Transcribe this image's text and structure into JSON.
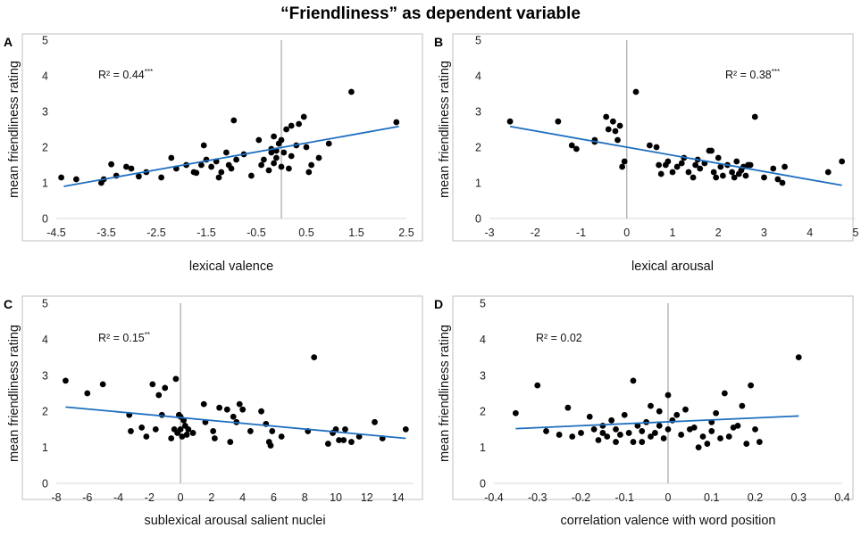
{
  "title": "“Friendliness” as dependent variable",
  "chart_data": [
    {
      "panel": "A",
      "type": "scatter",
      "xlabel": "lexical valence",
      "ylabel": "mean friendliness rating",
      "xlim": [
        -4.5,
        2.5
      ],
      "ylim": [
        0,
        5
      ],
      "xticks": [
        -4.5,
        -3.5,
        -2.5,
        -1.5,
        -0.5,
        0.5,
        1.5,
        2.5
      ],
      "xtick_labels": [
        "-4.5",
        "-3.5",
        "-2.5",
        "-1.5",
        "-0.5",
        "0.5",
        "1.5",
        "2.5"
      ],
      "yticks": [
        0,
        1,
        2,
        3,
        4,
        5
      ],
      "zero_line_x": 0,
      "r2": {
        "text": "R² = 0.44",
        "stars": "***"
      },
      "fit": [
        [
          -4.35,
          0.9
        ],
        [
          2.35,
          2.58
        ]
      ],
      "points": [
        [
          -4.4,
          1.15
        ],
        [
          -4.1,
          1.1
        ],
        [
          -3.6,
          1.0
        ],
        [
          -3.55,
          1.1
        ],
        [
          -3.4,
          1.52
        ],
        [
          -3.3,
          1.2
        ],
        [
          -3.1,
          1.45
        ],
        [
          -3.0,
          1.4
        ],
        [
          -2.85,
          1.18
        ],
        [
          -2.7,
          1.3
        ],
        [
          -2.4,
          1.15
        ],
        [
          -2.2,
          1.7
        ],
        [
          -2.1,
          1.4
        ],
        [
          -1.9,
          1.5
        ],
        [
          -1.75,
          1.3
        ],
        [
          -1.7,
          1.28
        ],
        [
          -1.6,
          1.5
        ],
        [
          -1.55,
          2.05
        ],
        [
          -1.5,
          1.65
        ],
        [
          -1.4,
          1.45
        ],
        [
          -1.3,
          1.6
        ],
        [
          -1.25,
          1.15
        ],
        [
          -1.2,
          1.3
        ],
        [
          -1.1,
          1.85
        ],
        [
          -1.05,
          1.5
        ],
        [
          -1.0,
          1.4
        ],
        [
          -0.95,
          2.75
        ],
        [
          -0.9,
          1.65
        ],
        [
          -0.75,
          1.8
        ],
        [
          -0.6,
          1.2
        ],
        [
          -0.45,
          2.2
        ],
        [
          -0.4,
          1.5
        ],
        [
          -0.35,
          1.65
        ],
        [
          -0.25,
          1.35
        ],
        [
          -0.2,
          1.85
        ],
        [
          -0.15,
          1.55
        ],
        [
          -0.1,
          1.7
        ],
        [
          -0.1,
          1.9
        ],
        [
          -0.05,
          2.1
        ],
        [
          0.0,
          2.2
        ],
        [
          0.0,
          1.45
        ],
        [
          0.05,
          1.85
        ],
        [
          0.1,
          2.5
        ],
        [
          0.15,
          1.4
        ],
        [
          -0.2,
          1.95
        ],
        [
          -0.15,
          2.3
        ],
        [
          0.2,
          2.6
        ],
        [
          0.3,
          2.05
        ],
        [
          0.35,
          2.65
        ],
        [
          0.45,
          2.85
        ],
        [
          0.5,
          2.0
        ],
        [
          0.55,
          1.3
        ],
        [
          0.6,
          1.5
        ],
        [
          0.75,
          1.7
        ],
        [
          0.95,
          2.1
        ],
        [
          1.4,
          3.55
        ],
        [
          2.3,
          2.7
        ],
        [
          0.2,
          1.75
        ]
      ]
    },
    {
      "panel": "B",
      "type": "scatter",
      "xlabel": "lexical arousal",
      "ylabel": "mean friendliness rating",
      "xlim": [
        -3,
        5
      ],
      "ylim": [
        0,
        5
      ],
      "xticks": [
        -3,
        -2,
        -1,
        0,
        1,
        2,
        3,
        4,
        5
      ],
      "xtick_labels": [
        "-3",
        "-2",
        "-1",
        "0",
        "1",
        "2",
        "3",
        "4",
        "5"
      ],
      "yticks": [
        0,
        1,
        2,
        3,
        4,
        5
      ],
      "zero_line_x": 0,
      "r2": {
        "text": "R² = 0.38",
        "stars": "***"
      },
      "fit": [
        [
          -2.55,
          2.58
        ],
        [
          4.7,
          0.93
        ]
      ],
      "points": [
        [
          -2.55,
          2.72
        ],
        [
          -1.5,
          2.72
        ],
        [
          -1.2,
          2.05
        ],
        [
          -1.1,
          1.95
        ],
        [
          -0.7,
          2.15
        ],
        [
          -0.7,
          2.2
        ],
        [
          -0.45,
          2.85
        ],
        [
          -0.4,
          2.5
        ],
        [
          -0.3,
          2.72
        ],
        [
          -0.25,
          2.45
        ],
        [
          -0.2,
          2.2
        ],
        [
          -0.15,
          2.6
        ],
        [
          -0.1,
          1.45
        ],
        [
          -0.05,
          1.6
        ],
        [
          0.2,
          3.55
        ],
        [
          0.5,
          2.05
        ],
        [
          0.65,
          2.0
        ],
        [
          0.7,
          1.5
        ],
        [
          0.75,
          1.25
        ],
        [
          0.85,
          1.5
        ],
        [
          0.9,
          1.6
        ],
        [
          1.0,
          1.3
        ],
        [
          1.1,
          1.45
        ],
        [
          1.2,
          1.55
        ],
        [
          1.25,
          1.7
        ],
        [
          1.35,
          1.3
        ],
        [
          1.45,
          1.15
        ],
        [
          1.5,
          1.5
        ],
        [
          1.55,
          1.65
        ],
        [
          1.6,
          1.4
        ],
        [
          1.7,
          1.55
        ],
        [
          1.8,
          1.9
        ],
        [
          1.85,
          1.9
        ],
        [
          1.9,
          1.3
        ],
        [
          1.95,
          1.15
        ],
        [
          2.0,
          1.7
        ],
        [
          2.05,
          1.45
        ],
        [
          2.1,
          1.2
        ],
        [
          2.2,
          1.5
        ],
        [
          2.3,
          1.3
        ],
        [
          2.35,
          1.15
        ],
        [
          2.4,
          1.6
        ],
        [
          2.45,
          1.25
        ],
        [
          2.5,
          1.35
        ],
        [
          2.55,
          1.45
        ],
        [
          2.6,
          1.2
        ],
        [
          2.65,
          1.5
        ],
        [
          2.7,
          1.5
        ],
        [
          2.8,
          2.85
        ],
        [
          3.0,
          1.15
        ],
        [
          3.2,
          1.4
        ],
        [
          3.3,
          1.1
        ],
        [
          3.4,
          1.0
        ],
        [
          3.45,
          1.45
        ],
        [
          4.4,
          1.3
        ],
        [
          4.7,
          1.6
        ]
      ]
    },
    {
      "panel": "C",
      "type": "scatter",
      "xlabel": "sublexical arousal salient nuclei",
      "ylabel": "mean friendliness rating",
      "xlim": [
        -8,
        15
      ],
      "ylim": [
        0,
        5
      ],
      "xticks": [
        -8,
        -6,
        -4,
        -2,
        0,
        2,
        4,
        6,
        8,
        10,
        12,
        14
      ],
      "xtick_labels": [
        "-8",
        "-6",
        "-4",
        "-2",
        "0",
        "2",
        "4",
        "6",
        "8",
        "10",
        "12",
        "14"
      ],
      "yticks": [
        0,
        1,
        2,
        3,
        4,
        5
      ],
      "zero_line_x": 0,
      "r2": {
        "text": "R² = 0.15",
        "stars": "**"
      },
      "fit": [
        [
          -7.4,
          2.12
        ],
        [
          14.5,
          1.25
        ]
      ],
      "points": [
        [
          -7.4,
          2.85
        ],
        [
          -6.0,
          2.5
        ],
        [
          -5.0,
          2.75
        ],
        [
          -3.3,
          1.9
        ],
        [
          -3.2,
          1.45
        ],
        [
          -2.5,
          1.55
        ],
        [
          -2.2,
          1.3
        ],
        [
          -1.8,
          2.75
        ],
        [
          -1.6,
          1.5
        ],
        [
          -1.4,
          2.45
        ],
        [
          -1.2,
          1.9
        ],
        [
          -1.0,
          2.65
        ],
        [
          -0.6,
          1.25
        ],
        [
          -0.4,
          1.5
        ],
        [
          -0.3,
          2.9
        ],
        [
          -0.2,
          1.4
        ],
        [
          -0.1,
          1.9
        ],
        [
          0.0,
          1.5
        ],
        [
          0.0,
          1.85
        ],
        [
          0.1,
          1.3
        ],
        [
          0.2,
          1.75
        ],
        [
          0.3,
          1.6
        ],
        [
          0.4,
          1.35
        ],
        [
          0.5,
          1.5
        ],
        [
          0.8,
          1.4
        ],
        [
          1.5,
          2.2
        ],
        [
          1.6,
          1.7
        ],
        [
          2.1,
          1.45
        ],
        [
          2.2,
          1.25
        ],
        [
          2.5,
          2.1
        ],
        [
          3.0,
          2.05
        ],
        [
          3.2,
          1.15
        ],
        [
          3.4,
          1.85
        ],
        [
          3.6,
          1.7
        ],
        [
          3.8,
          2.2
        ],
        [
          4.0,
          2.05
        ],
        [
          4.5,
          1.45
        ],
        [
          5.2,
          2.0
        ],
        [
          5.5,
          1.65
        ],
        [
          5.7,
          1.15
        ],
        [
          5.8,
          1.05
        ],
        [
          5.9,
          1.45
        ],
        [
          6.5,
          1.3
        ],
        [
          8.2,
          1.45
        ],
        [
          8.6,
          3.5
        ],
        [
          9.5,
          1.1
        ],
        [
          9.8,
          1.4
        ],
        [
          10.0,
          1.5
        ],
        [
          10.2,
          1.2
        ],
        [
          10.5,
          1.2
        ],
        [
          10.6,
          1.5
        ],
        [
          11.0,
          1.15
        ],
        [
          11.5,
          1.3
        ],
        [
          12.5,
          1.7
        ],
        [
          13.0,
          1.25
        ],
        [
          14.5,
          1.5
        ]
      ]
    },
    {
      "panel": "D",
      "type": "scatter",
      "xlabel": "correlation valence with word position",
      "ylabel": "mean friendliness rating",
      "xlim": [
        -0.4,
        0.4
      ],
      "ylim": [
        0,
        5
      ],
      "xticks": [
        -0.4,
        -0.3,
        -0.2,
        -0.1,
        0,
        0.1,
        0.2,
        0.3,
        0.4
      ],
      "xtick_labels": [
        "-0.4",
        "-0.3",
        "-0.2",
        "-0.1",
        "0",
        "0.1",
        "0.2",
        "0.3",
        "0.4"
      ],
      "yticks": [
        0,
        1,
        2,
        3,
        4,
        5
      ],
      "zero_line_x": 0,
      "r2": {
        "text": "R² = 0.02",
        "stars": ""
      },
      "fit": [
        [
          -0.35,
          1.52
        ],
        [
          0.3,
          1.87
        ]
      ],
      "points": [
        [
          -0.35,
          1.95
        ],
        [
          -0.3,
          2.72
        ],
        [
          -0.28,
          1.45
        ],
        [
          -0.25,
          1.35
        ],
        [
          -0.23,
          2.1
        ],
        [
          -0.22,
          1.3
        ],
        [
          -0.2,
          1.4
        ],
        [
          -0.18,
          1.85
        ],
        [
          -0.17,
          1.5
        ],
        [
          -0.16,
          1.2
        ],
        [
          -0.15,
          1.4
        ],
        [
          -0.15,
          1.6
        ],
        [
          -0.14,
          1.3
        ],
        [
          -0.13,
          1.75
        ],
        [
          -0.12,
          1.15
        ],
        [
          -0.12,
          1.5
        ],
        [
          -0.11,
          1.35
        ],
        [
          -0.1,
          1.9
        ],
        [
          -0.09,
          1.4
        ],
        [
          -0.08,
          2.85
        ],
        [
          -0.07,
          1.6
        ],
        [
          -0.06,
          1.15
        ],
        [
          -0.06,
          1.45
        ],
        [
          -0.05,
          1.7
        ],
        [
          -0.04,
          1.3
        ],
        [
          -0.04,
          2.15
        ],
        [
          -0.03,
          1.4
        ],
        [
          -0.02,
          2.0
        ],
        [
          -0.02,
          1.6
        ],
        [
          -0.01,
          1.25
        ],
        [
          0.0,
          2.45
        ],
        [
          0.01,
          1.75
        ],
        [
          0.02,
          1.9
        ],
        [
          0.03,
          1.35
        ],
        [
          0.04,
          2.05
        ],
        [
          0.05,
          1.5
        ],
        [
          0.06,
          1.55
        ],
        [
          0.07,
          1.0
        ],
        [
          0.08,
          1.3
        ],
        [
          0.09,
          1.1
        ],
        [
          0.1,
          1.45
        ],
        [
          0.11,
          1.95
        ],
        [
          0.12,
          1.25
        ],
        [
          0.13,
          2.5
        ],
        [
          0.14,
          1.3
        ],
        [
          0.15,
          1.55
        ],
        [
          0.16,
          1.6
        ],
        [
          0.17,
          2.15
        ],
        [
          0.18,
          1.1
        ],
        [
          0.19,
          2.72
        ],
        [
          0.2,
          1.5
        ],
        [
          0.21,
          1.15
        ],
        [
          0.3,
          3.5
        ],
        [
          -0.08,
          1.15
        ],
        [
          0.0,
          1.5
        ],
        [
          0.1,
          1.7
        ]
      ]
    }
  ]
}
